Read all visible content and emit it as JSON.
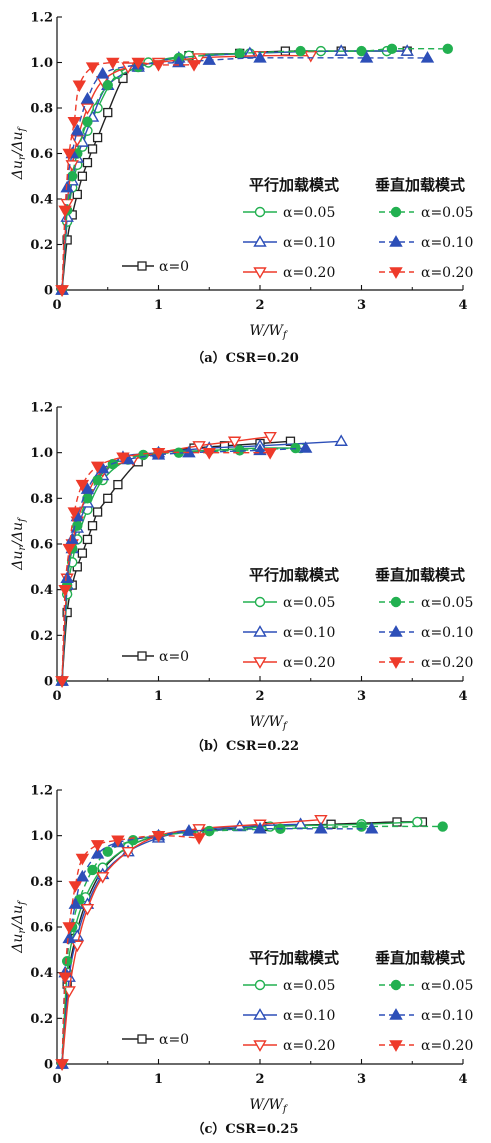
{
  "chart_data": [
    {
      "type": "line",
      "caption": "（a）CSR=0.20",
      "xlabel": "W/W",
      "xlabel_sub": "f",
      "ylabel": "Δu/Δu",
      "ylabel_sub_r": "r",
      "ylabel_sub_f": "f",
      "xlim": [
        0,
        4
      ],
      "ylim": [
        0,
        1.2
      ],
      "xticks": [
        "0",
        "1",
        "2",
        "3",
        "4"
      ],
      "yticks": [
        "0",
        "0.2",
        "0.4",
        "0.6",
        "0.8",
        "1.0",
        "1.2"
      ],
      "legend_headers": [
        "平行加载模式",
        "垂直加载模式"
      ],
      "series": [
        {
          "name": "α=0",
          "mode": "base",
          "color": "#222222",
          "marker": "square",
          "dash": false,
          "x": [
            0.05,
            0.1,
            0.15,
            0.2,
            0.25,
            0.3,
            0.35,
            0.4,
            0.5,
            0.65,
            0.8,
            1.3,
            1.8,
            2.25,
            2.8,
            3.45
          ],
          "y": [
            0.0,
            0.22,
            0.33,
            0.42,
            0.5,
            0.56,
            0.62,
            0.67,
            0.78,
            0.93,
            0.98,
            1.03,
            1.04,
            1.05,
            1.05,
            1.05
          ]
        },
        {
          "name": "α=0.05",
          "mode": "parallel",
          "color": "#22b050",
          "marker": "circle",
          "dash": false,
          "x": [
            0.05,
            0.1,
            0.15,
            0.2,
            0.25,
            0.3,
            0.4,
            0.6,
            0.9,
            1.3,
            1.9,
            2.6,
            3.25
          ],
          "y": [
            0.0,
            0.3,
            0.45,
            0.55,
            0.63,
            0.7,
            0.8,
            0.95,
            1.0,
            1.03,
            1.04,
            1.05,
            1.05
          ]
        },
        {
          "name": "α=0.10",
          "mode": "parallel",
          "color": "#2d4fb8",
          "marker": "triangle-up",
          "dash": false,
          "x": [
            0.05,
            0.1,
            0.15,
            0.2,
            0.25,
            0.35,
            0.5,
            0.8,
            1.2,
            1.9,
            2.8,
            3.45
          ],
          "y": [
            0.0,
            0.32,
            0.48,
            0.58,
            0.65,
            0.76,
            0.9,
            0.98,
            1.02,
            1.04,
            1.05,
            1.05
          ]
        },
        {
          "name": "α=0.20",
          "mode": "parallel",
          "color": "#ee3a2a",
          "marker": "triangle-down",
          "dash": false,
          "x": [
            0.05,
            0.1,
            0.15,
            0.2,
            0.3,
            0.45,
            0.7,
            1.0,
            1.4,
            2.0,
            2.5
          ],
          "y": [
            0.0,
            0.38,
            0.55,
            0.66,
            0.8,
            0.92,
            0.98,
            1.0,
            1.02,
            1.03,
            1.03
          ]
        },
        {
          "name": "α=0.05",
          "mode": "vertical",
          "color": "#22b050",
          "marker": "circle",
          "dash": true,
          "x": [
            0.05,
            0.1,
            0.15,
            0.2,
            0.3,
            0.5,
            0.8,
            1.2,
            1.8,
            2.4,
            3.0,
            3.3,
            3.85
          ],
          "y": [
            0.0,
            0.35,
            0.5,
            0.6,
            0.74,
            0.9,
            0.98,
            1.02,
            1.04,
            1.05,
            1.05,
            1.06,
            1.06
          ]
        },
        {
          "name": "α=0.10",
          "mode": "vertical",
          "color": "#2d4fb8",
          "marker": "triangle-up",
          "dash": true,
          "x": [
            0.05,
            0.1,
            0.15,
            0.2,
            0.3,
            0.45,
            0.8,
            1.2,
            1.5,
            2.0,
            3.05,
            3.65
          ],
          "y": [
            0.0,
            0.45,
            0.6,
            0.7,
            0.84,
            0.95,
            0.99,
            1.0,
            1.01,
            1.02,
            1.02,
            1.02
          ]
        },
        {
          "name": "α=0.20",
          "mode": "vertical",
          "color": "#ee3a2a",
          "marker": "triangle-down",
          "dash": true,
          "x": [
            0.05,
            0.08,
            0.12,
            0.17,
            0.22,
            0.35,
            0.55,
            0.8,
            1.0,
            1.35
          ],
          "y": [
            0.0,
            0.35,
            0.6,
            0.74,
            0.9,
            0.98,
            1.0,
            1.0,
            0.99,
            0.99
          ]
        }
      ]
    },
    {
      "type": "line",
      "caption": "（b）CSR=0.22",
      "xlabel": "W/W",
      "xlabel_sub": "f",
      "ylabel": "Δu/Δu",
      "ylabel_sub_r": "r",
      "ylabel_sub_f": "f",
      "xlim": [
        0,
        4
      ],
      "ylim": [
        0,
        1.2
      ],
      "xticks": [
        "0",
        "1",
        "2",
        "3",
        "4"
      ],
      "yticks": [
        "0",
        "0.2",
        "0.4",
        "0.6",
        "0.8",
        "1.0",
        "1.2"
      ],
      "legend_headers": [
        "平行加载模式",
        "垂直加载模式"
      ],
      "series": [
        {
          "name": "α=0",
          "mode": "base",
          "color": "#222222",
          "marker": "square",
          "dash": false,
          "x": [
            0.05,
            0.1,
            0.15,
            0.2,
            0.25,
            0.3,
            0.35,
            0.4,
            0.5,
            0.6,
            0.8,
            1.0,
            1.35,
            1.65,
            2.0,
            2.3
          ],
          "y": [
            0.0,
            0.3,
            0.42,
            0.5,
            0.56,
            0.62,
            0.68,
            0.74,
            0.8,
            0.86,
            0.96,
            1.0,
            1.02,
            1.03,
            1.04,
            1.05
          ]
        },
        {
          "name": "α=0.05",
          "mode": "parallel",
          "color": "#22b050",
          "marker": "circle",
          "dash": false,
          "x": [
            0.05,
            0.1,
            0.15,
            0.2,
            0.3,
            0.45,
            0.7,
            1.0,
            1.5,
            2.0,
            2.4
          ],
          "y": [
            0.0,
            0.38,
            0.52,
            0.62,
            0.75,
            0.88,
            0.97,
            1.0,
            1.01,
            1.02,
            1.02
          ]
        },
        {
          "name": "α=0.10",
          "mode": "parallel",
          "color": "#2d4fb8",
          "marker": "triangle-up",
          "dash": false,
          "x": [
            0.05,
            0.1,
            0.15,
            0.2,
            0.3,
            0.45,
            0.65,
            1.0,
            1.5,
            2.0,
            2.8
          ],
          "y": [
            0.0,
            0.42,
            0.58,
            0.67,
            0.78,
            0.9,
            0.98,
            1.0,
            1.02,
            1.03,
            1.05
          ]
        },
        {
          "name": "α=0.20",
          "mode": "parallel",
          "color": "#ee3a2a",
          "marker": "triangle-down",
          "dash": false,
          "x": [
            0.05,
            0.1,
            0.15,
            0.2,
            0.3,
            0.45,
            0.75,
            1.0,
            1.4,
            1.75,
            2.1
          ],
          "y": [
            0.0,
            0.45,
            0.6,
            0.7,
            0.82,
            0.92,
            0.97,
            1.0,
            1.03,
            1.05,
            1.07
          ]
        },
        {
          "name": "α=0.05",
          "mode": "vertical",
          "color": "#22b050",
          "marker": "circle",
          "dash": true,
          "x": [
            0.05,
            0.1,
            0.15,
            0.2,
            0.3,
            0.4,
            0.55,
            0.85,
            1.2,
            1.8,
            2.35
          ],
          "y": [
            0.0,
            0.42,
            0.58,
            0.68,
            0.8,
            0.88,
            0.95,
            0.99,
            1.0,
            1.01,
            1.02
          ]
        },
        {
          "name": "α=0.10",
          "mode": "vertical",
          "color": "#2d4fb8",
          "marker": "triangle-up",
          "dash": true,
          "x": [
            0.05,
            0.1,
            0.15,
            0.2,
            0.3,
            0.45,
            0.7,
            1.0,
            1.3,
            2.0,
            2.45
          ],
          "y": [
            0.0,
            0.45,
            0.62,
            0.72,
            0.84,
            0.93,
            0.97,
            0.99,
            1.0,
            1.01,
            1.02
          ]
        },
        {
          "name": "α=0.20",
          "mode": "vertical",
          "color": "#ee3a2a",
          "marker": "triangle-down",
          "dash": true,
          "x": [
            0.05,
            0.08,
            0.12,
            0.17,
            0.25,
            0.4,
            0.65,
            1.0,
            1.5,
            2.1
          ],
          "y": [
            0.0,
            0.4,
            0.58,
            0.74,
            0.86,
            0.94,
            0.98,
            1.0,
            1.0,
            1.0
          ]
        }
      ]
    },
    {
      "type": "line",
      "caption": "（c）CSR=0.25",
      "xlabel": "W/W",
      "xlabel_sub": "f",
      "ylabel": "Δu/Δu",
      "ylabel_sub_r": "r",
      "ylabel_sub_f": "f",
      "xlim": [
        0,
        4
      ],
      "ylim": [
        0,
        1.2
      ],
      "xticks": [
        "0",
        "1",
        "2",
        "3",
        "4"
      ],
      "yticks": [
        "0",
        "0.2",
        "0.4",
        "0.6",
        "0.8",
        "1.0",
        "1.2"
      ],
      "legend_headers": [
        "平行加载模式",
        "垂直加载模式"
      ],
      "series": [
        {
          "name": "α=0",
          "mode": "base",
          "color": "#222222",
          "marker": "square",
          "dash": false,
          "x": [
            0.05,
            0.1,
            0.18,
            0.28,
            0.45,
            0.7,
            1.0,
            1.4,
            2.05,
            2.7,
            3.35,
            3.6
          ],
          "y": [
            0.0,
            0.35,
            0.55,
            0.7,
            0.85,
            0.95,
            1.0,
            1.02,
            1.04,
            1.05,
            1.06,
            1.06
          ]
        },
        {
          "name": "α=0.05",
          "mode": "parallel",
          "color": "#22b050",
          "marker": "circle",
          "dash": false,
          "x": [
            0.05,
            0.1,
            0.18,
            0.28,
            0.45,
            0.7,
            1.0,
            1.5,
            2.1,
            3.0,
            3.55
          ],
          "y": [
            0.0,
            0.4,
            0.6,
            0.73,
            0.86,
            0.95,
            1.0,
            1.02,
            1.04,
            1.05,
            1.06
          ]
        },
        {
          "name": "α=0.10",
          "mode": "parallel",
          "color": "#2d4fb8",
          "marker": "triangle-up",
          "dash": false,
          "x": [
            0.05,
            0.12,
            0.2,
            0.3,
            0.45,
            0.7,
            1.0,
            1.3,
            1.8,
            2.4
          ],
          "y": [
            0.0,
            0.38,
            0.56,
            0.7,
            0.83,
            0.93,
            0.99,
            1.02,
            1.04,
            1.05
          ]
        },
        {
          "name": "α=0.20",
          "mode": "parallel",
          "color": "#ee3a2a",
          "marker": "triangle-down",
          "dash": false,
          "x": [
            0.05,
            0.12,
            0.2,
            0.3,
            0.45,
            0.7,
            1.0,
            1.4,
            2.0,
            2.6
          ],
          "y": [
            0.0,
            0.32,
            0.52,
            0.68,
            0.82,
            0.93,
            1.0,
            1.03,
            1.05,
            1.07
          ]
        },
        {
          "name": "α=0.05",
          "mode": "vertical",
          "color": "#22b050",
          "marker": "circle",
          "dash": true,
          "x": [
            0.05,
            0.1,
            0.15,
            0.22,
            0.35,
            0.5,
            0.75,
            1.0,
            1.5,
            2.2,
            3.0,
            3.8
          ],
          "y": [
            0.0,
            0.45,
            0.6,
            0.72,
            0.85,
            0.93,
            0.98,
            1.0,
            1.02,
            1.03,
            1.04,
            1.04
          ]
        },
        {
          "name": "α=0.10",
          "mode": "vertical",
          "color": "#2d4fb8",
          "marker": "triangle-up",
          "dash": true,
          "x": [
            0.05,
            0.08,
            0.12,
            0.18,
            0.25,
            0.4,
            0.6,
            1.0,
            1.3,
            2.0,
            2.6,
            3.1
          ],
          "y": [
            0.0,
            0.4,
            0.55,
            0.7,
            0.82,
            0.92,
            0.97,
            1.0,
            1.02,
            1.03,
            1.03,
            1.03
          ]
        },
        {
          "name": "α=0.20",
          "mode": "vertical",
          "color": "#ee3a2a",
          "marker": "triangle-down",
          "dash": true,
          "x": [
            0.05,
            0.08,
            0.12,
            0.18,
            0.25,
            0.4,
            0.6,
            1.0,
            1.4
          ],
          "y": [
            0.0,
            0.38,
            0.6,
            0.78,
            0.9,
            0.96,
            0.98,
            1.0,
            0.99
          ]
        }
      ]
    }
  ]
}
